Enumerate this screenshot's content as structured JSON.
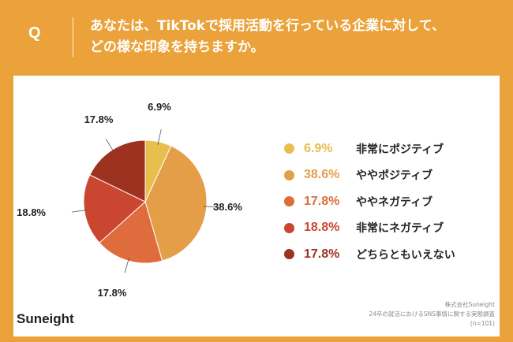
{
  "header": {
    "q_mark": "Q",
    "question_line1": "あなたは、TikTokで採用活動を行っている企業に対して、",
    "question_line2": "どの様な印象を持ちますか。"
  },
  "colors": {
    "background": "#EBA23A",
    "card": "#FFFFFF"
  },
  "chart_data": {
    "type": "pie",
    "slices": [
      {
        "label": "非常にポジティブ",
        "value": 6.9,
        "display": "6.9%",
        "color": "#E8BE4F"
      },
      {
        "label": "ややポジティブ",
        "value": 38.6,
        "display": "38.6%",
        "color": "#E59E48"
      },
      {
        "label": "ややネガティブ",
        "value": 17.8,
        "display": "17.8%",
        "color": "#DF6C3C"
      },
      {
        "label": "非常にネガティブ",
        "value": 18.8,
        "display": "18.8%",
        "color": "#CB4631"
      },
      {
        "label": "どちらともいえない",
        "value": 17.8,
        "display": "17.8%",
        "color": "#9E3220"
      }
    ],
    "start": "12 o'clock",
    "direction": "clockwise",
    "legend_placement": "right"
  },
  "footer": {
    "logo": "Suneight",
    "note_line1": "株式会社Suneight",
    "note_line2": "24卒の就活におけるSNS事情に関する実態調査",
    "note_line3": "(n=101)"
  }
}
